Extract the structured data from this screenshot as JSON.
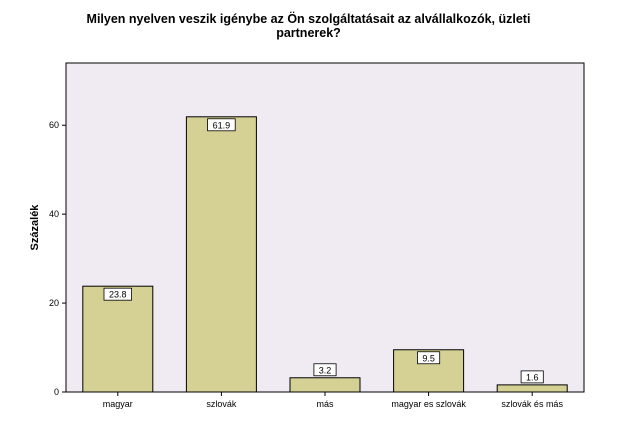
{
  "chart_data": {
    "type": "bar",
    "title_lines": [
      "Milyen nyelven veszik igénybe az Ön szolgáltatásait az alvállalkozók, üzleti",
      "partnerek?"
    ],
    "ylabel": "Százalék",
    "xlabel": "",
    "categories": [
      "magyar",
      "szlovák",
      "más",
      "magyar es szlovák",
      "szlovák és más"
    ],
    "values": [
      23.8,
      61.9,
      3.2,
      9.5,
      1.6
    ],
    "data_labels": [
      "23.8",
      "61.9",
      "3.2",
      "9.5",
      "1.6"
    ],
    "ylim": [
      0,
      74
    ],
    "yticks": [
      0,
      20,
      40,
      60
    ],
    "grid": false,
    "legend": "none",
    "colors": {
      "plot_background": "#f0ebf3",
      "bar_fill": "#d5d093",
      "bar_stroke": "#000000",
      "label_box_fill": "#ffffff"
    }
  }
}
